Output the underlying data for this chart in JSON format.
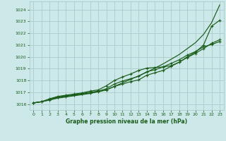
{
  "background_color": "#cce8e8",
  "grid_color": "#aacccc",
  "line_color": "#1a5c1a",
  "xlabel": "Graphe pression niveau de la mer (hPa)",
  "xlim": [
    -0.5,
    23.5
  ],
  "ylim": [
    1015.5,
    1024.7
  ],
  "yticks": [
    1016,
    1017,
    1018,
    1019,
    1020,
    1021,
    1022,
    1023,
    1024
  ],
  "xticks": [
    0,
    1,
    2,
    3,
    4,
    5,
    6,
    7,
    8,
    9,
    10,
    11,
    12,
    13,
    14,
    15,
    16,
    17,
    18,
    19,
    20,
    21,
    22,
    23
  ],
  "smooth_x": [
    0,
    1,
    2,
    3,
    4,
    5,
    6,
    7,
    8,
    9,
    10,
    11,
    12,
    13,
    14,
    15,
    16,
    17,
    18,
    19,
    20,
    21,
    22,
    23
  ],
  "smooth_y": [
    1016.1,
    1016.2,
    1016.35,
    1016.5,
    1016.6,
    1016.7,
    1016.8,
    1016.9,
    1017.05,
    1017.2,
    1017.5,
    1017.8,
    1018.1,
    1018.4,
    1018.7,
    1019.05,
    1019.4,
    1019.8,
    1020.2,
    1020.7,
    1021.2,
    1021.9,
    1022.9,
    1024.4
  ],
  "line1_x": [
    0,
    1,
    2,
    3,
    4,
    5,
    6,
    7,
    8,
    9,
    10,
    11,
    12,
    13,
    14,
    15,
    16,
    17,
    18,
    19,
    20,
    21,
    22,
    23
  ],
  "line1_y": [
    1016.1,
    1016.2,
    1016.45,
    1016.65,
    1016.75,
    1016.85,
    1016.95,
    1017.1,
    1017.2,
    1017.55,
    1018.0,
    1018.3,
    1018.55,
    1018.85,
    1019.05,
    1019.1,
    1019.15,
    1019.25,
    1019.55,
    1020.0,
    1020.4,
    1021.0,
    1022.6,
    1023.1
  ],
  "line2_x": [
    0,
    1,
    2,
    3,
    4,
    5,
    6,
    7,
    8,
    9,
    10,
    11,
    12,
    13,
    14,
    15,
    16,
    17,
    18,
    19,
    20,
    21,
    22,
    23
  ],
  "line2_y": [
    1016.1,
    1016.2,
    1016.4,
    1016.6,
    1016.7,
    1016.8,
    1016.9,
    1017.0,
    1017.1,
    1017.3,
    1017.7,
    1017.95,
    1018.15,
    1018.35,
    1018.75,
    1018.9,
    1019.15,
    1019.45,
    1019.75,
    1020.15,
    1020.45,
    1020.85,
    1021.05,
    1021.3
  ],
  "line3_x": [
    0,
    1,
    2,
    3,
    4,
    5,
    6,
    7,
    8,
    9,
    10,
    11,
    12,
    13,
    14,
    15,
    16,
    17,
    18,
    19,
    20,
    21,
    22,
    23
  ],
  "line3_y": [
    1016.1,
    1016.2,
    1016.35,
    1016.55,
    1016.65,
    1016.75,
    1016.85,
    1016.95,
    1017.05,
    1017.2,
    1017.5,
    1017.7,
    1017.9,
    1018.05,
    1018.45,
    1018.65,
    1018.85,
    1019.2,
    1019.55,
    1019.95,
    1020.3,
    1020.7,
    1021.15,
    1021.45
  ]
}
